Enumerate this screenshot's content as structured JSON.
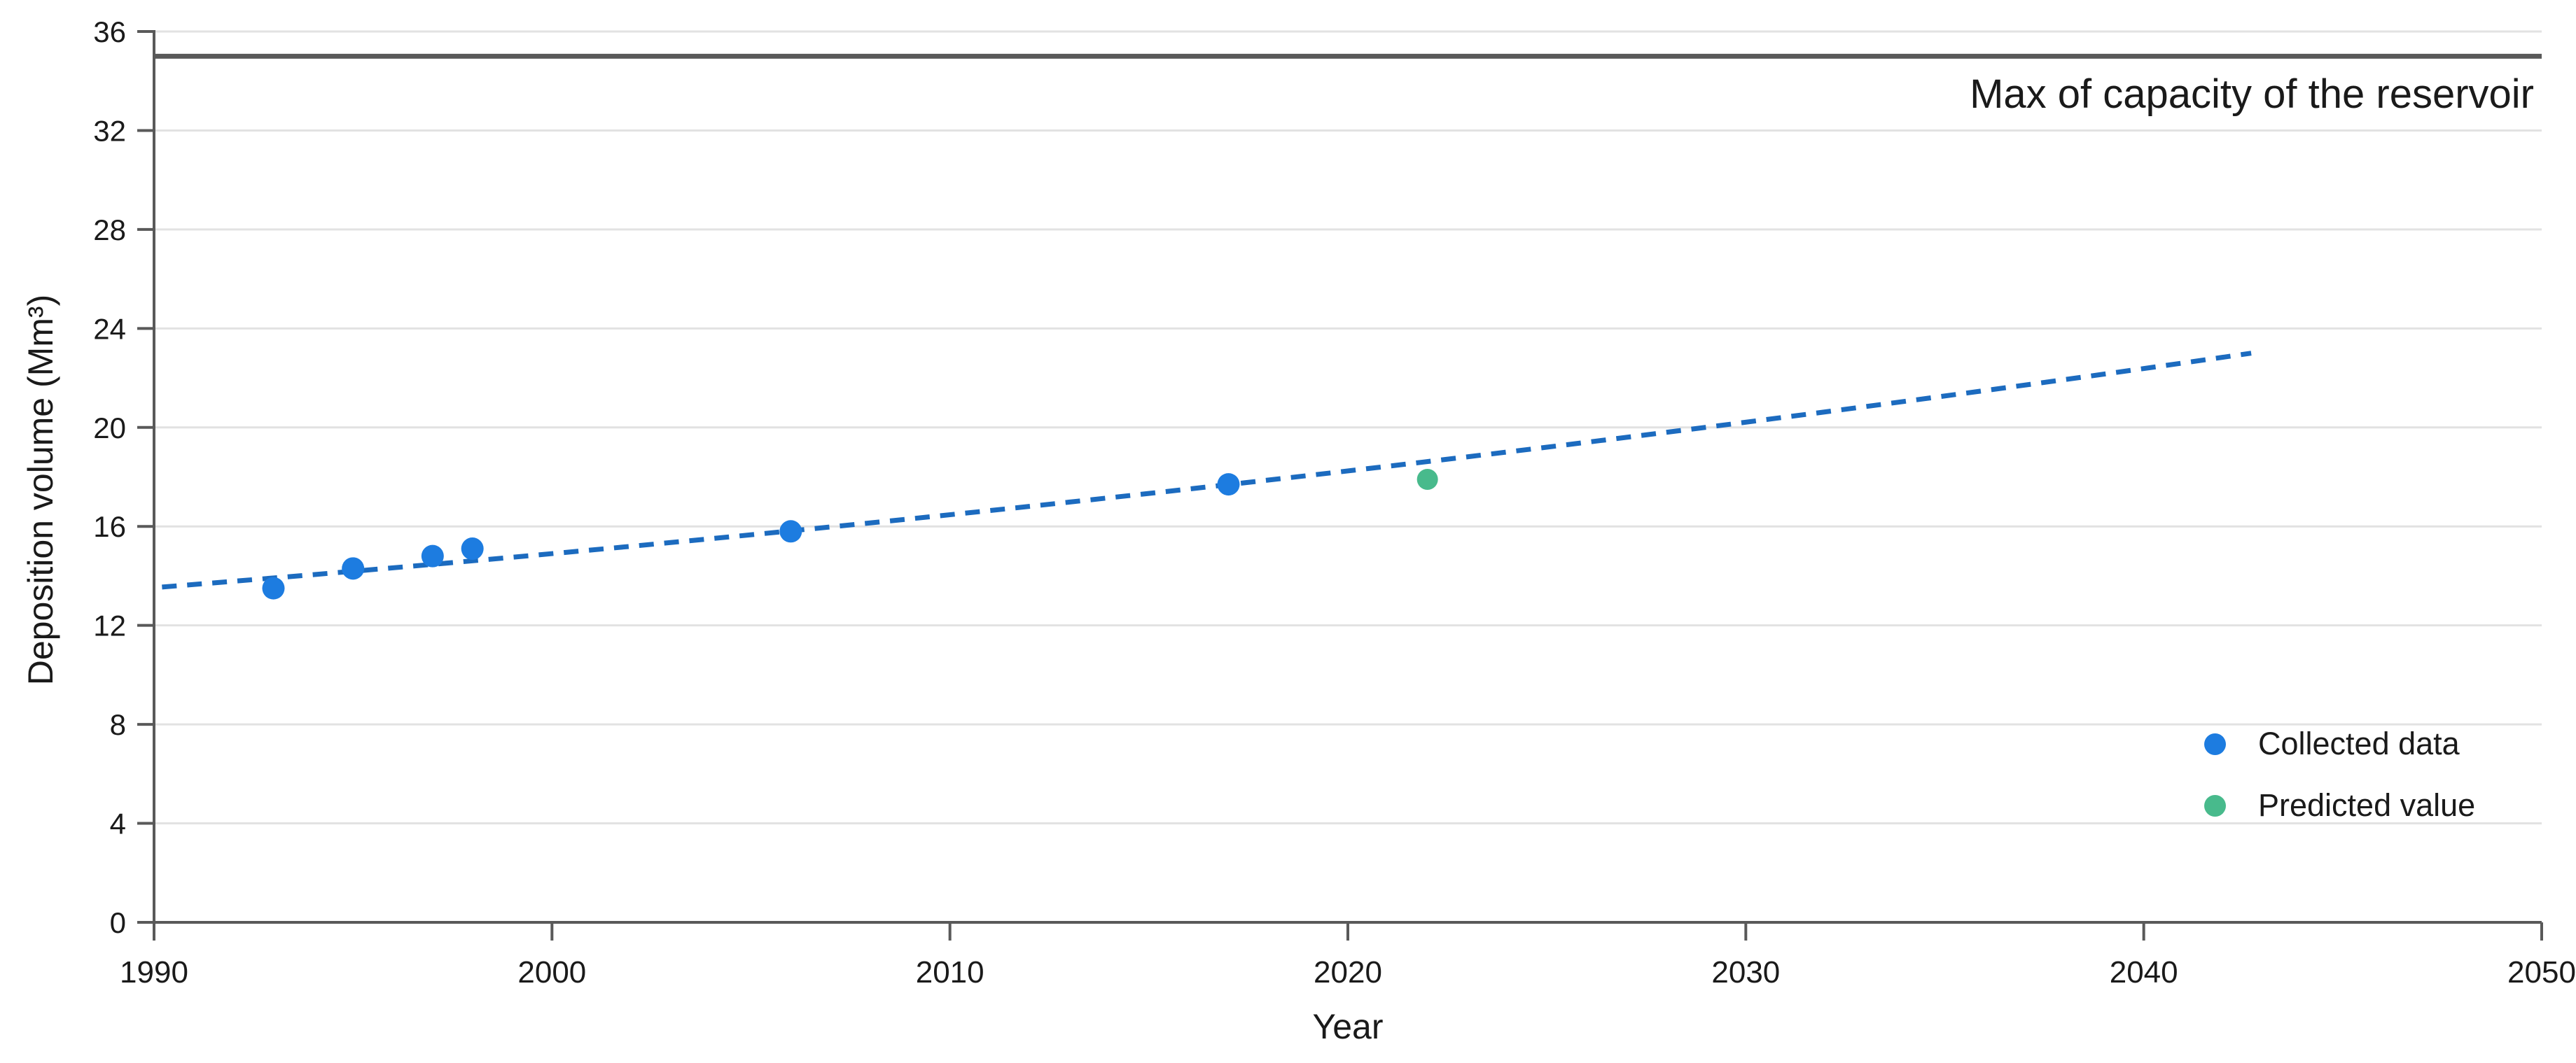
{
  "chart_data": {
    "type": "scatter",
    "title": "",
    "xlabel": "Year",
    "ylabel": "Deposition volume (Mm³)",
    "xlim": [
      1990,
      2050
    ],
    "ylim": [
      0,
      36
    ],
    "xticks": [
      1990,
      2000,
      2010,
      2020,
      2030,
      2040,
      2050
    ],
    "yticks": [
      0,
      4,
      8,
      12,
      16,
      20,
      24,
      28,
      32,
      36
    ],
    "grid": "horizontal-only",
    "background_color": "#ffffff",
    "axis_color": "#595959",
    "grid_color": "#e2e2e2",
    "text_color": "#1a1a1a",
    "series": [
      {
        "name": "Collected data",
        "color": "#1d7ce0",
        "marker": "circle",
        "marker_radius": 16,
        "points": [
          {
            "x": 1993,
            "y": 13.5
          },
          {
            "x": 1995,
            "y": 14.3
          },
          {
            "x": 1997,
            "y": 14.8
          },
          {
            "x": 1998,
            "y": 15.1
          },
          {
            "x": 2006,
            "y": 15.8
          },
          {
            "x": 2017,
            "y": 17.7
          }
        ]
      },
      {
        "name": "Predicted value",
        "color": "#48ba8c",
        "marker": "circle",
        "marker_radius": 15,
        "points": [
          {
            "x": 2022,
            "y": 17.9
          }
        ]
      }
    ],
    "trendline": {
      "style": "dashed",
      "color": "#1c6bbf",
      "start": {
        "x": 1990.2,
        "y": 13.55
      },
      "mid": {
        "x": 2016.5,
        "y": 17.6
      },
      "end": {
        "x": 2042.7,
        "y": 23.0
      }
    },
    "max_capacity": {
      "value": 35,
      "label": "Max of capacity of the reservoir",
      "color": "#595959"
    },
    "legend_position": "inside-right-bottom"
  }
}
